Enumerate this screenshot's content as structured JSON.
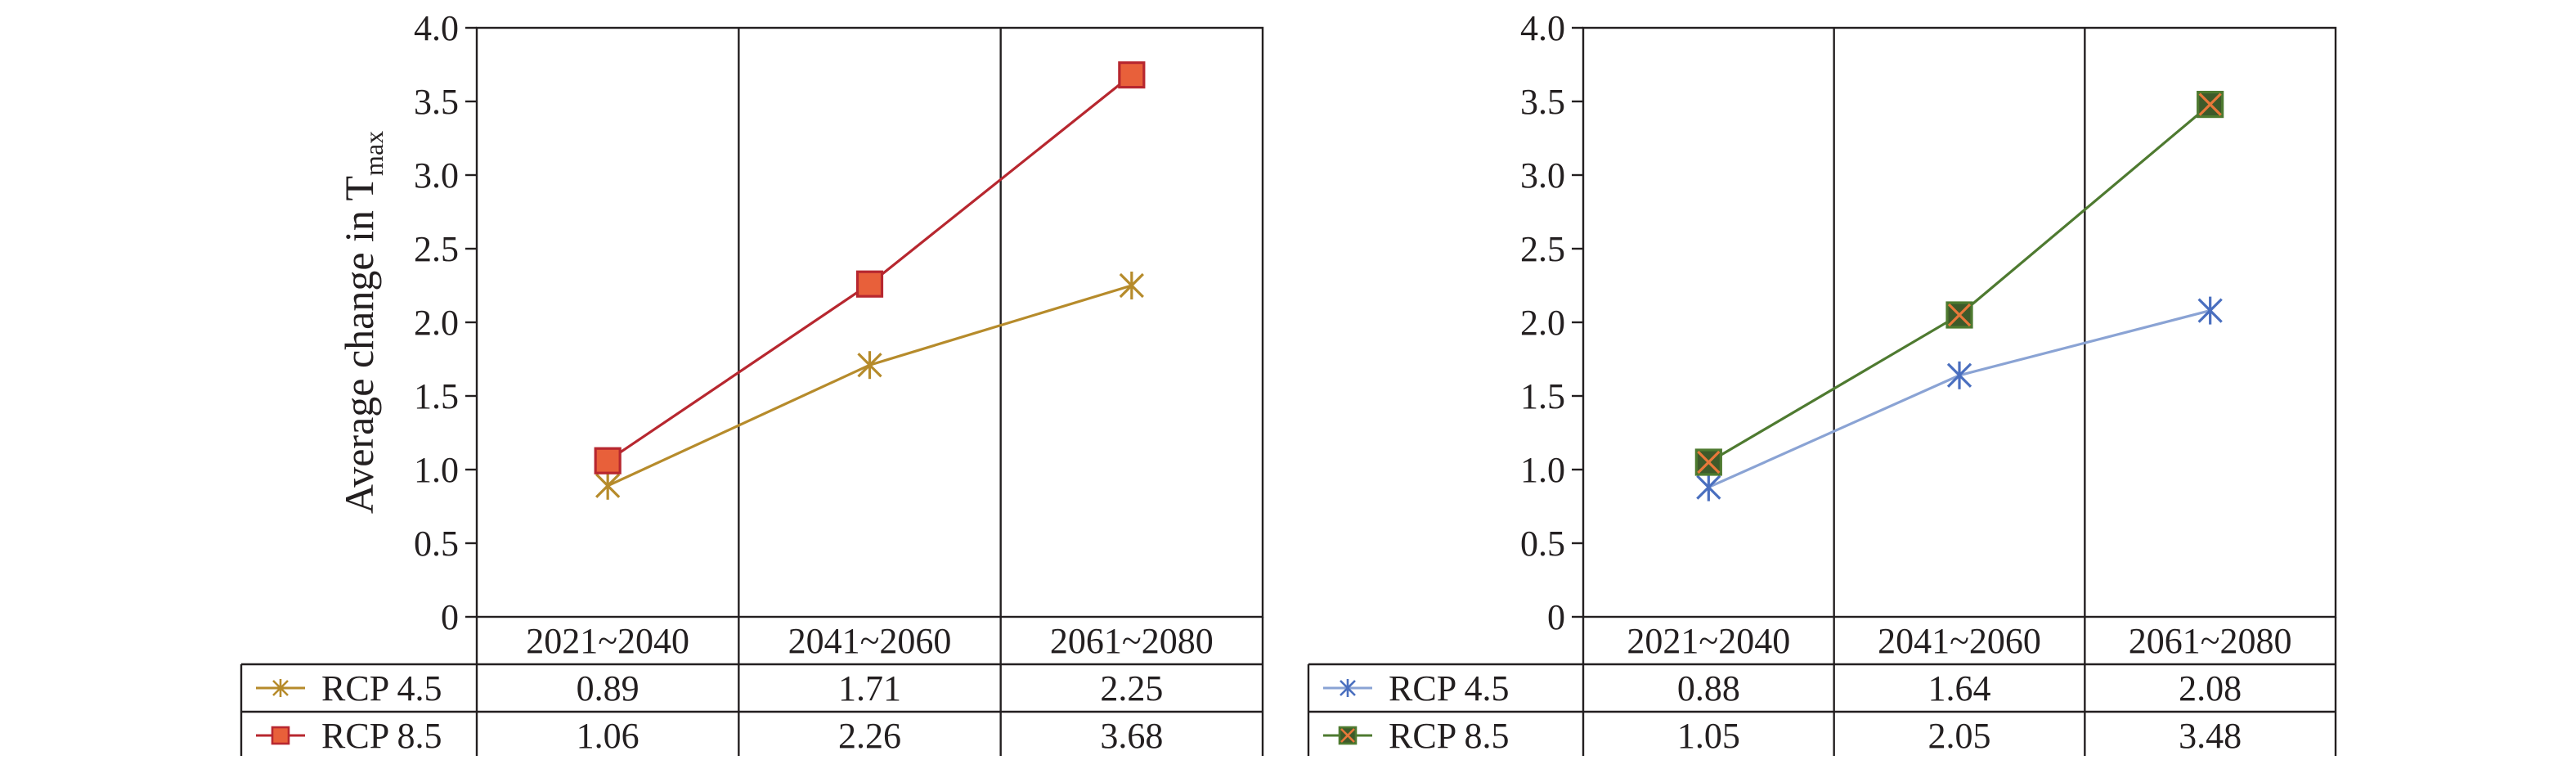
{
  "chart_data": [
    {
      "type": "line",
      "categories": [
        "2021~2040",
        "2041~2060",
        "2061~2080"
      ],
      "ylabel_main": "Average change in T",
      "ylabel_sub": "max",
      "yticks": [
        "0",
        "0.5",
        "1.0",
        "1.5",
        "2.0",
        "2.5",
        "3.0",
        "3.5",
        "4.0"
      ],
      "ylim": [
        0,
        4
      ],
      "grid": "vertical separators",
      "legend": "data table below",
      "series": [
        {
          "name": "RCP 4.5",
          "values": [
            0.89,
            1.71,
            2.25
          ],
          "labels": [
            "0.89",
            "1.71",
            "2.25"
          ],
          "color": "#b68b2b",
          "marker": "asterisk"
        },
        {
          "name": "RCP 8.5",
          "values": [
            1.06,
            2.26,
            3.68
          ],
          "labels": [
            "1.06",
            "2.26",
            "3.68"
          ],
          "color": "#b7272f",
          "marker": "square",
          "fill": "#e8603a"
        }
      ]
    },
    {
      "type": "line",
      "categories": [
        "2021~2040",
        "2041~2060",
        "2061~2080"
      ],
      "ylabel_main": "",
      "ylabel_sub": "",
      "yticks": [
        "0",
        "0.5",
        "1.0",
        "1.5",
        "2.0",
        "2.5",
        "3.0",
        "3.5",
        "4.0"
      ],
      "ylim": [
        0,
        4
      ],
      "grid": "vertical separators",
      "legend": "data table below",
      "series": [
        {
          "name": "RCP 4.5",
          "values": [
            0.88,
            1.64,
            2.08
          ],
          "labels": [
            "0.88",
            "1.64",
            "2.08"
          ],
          "color": "#4a6fbf",
          "marker": "asterisk",
          "line": "#8aa3d4"
        },
        {
          "name": "RCP 8.5",
          "values": [
            1.05,
            2.05,
            3.48
          ],
          "labels": [
            "1.05",
            "2.05",
            "3.48"
          ],
          "color": "#4e7a30",
          "marker": "square-x",
          "fill": "#3e5a2a",
          "cross": "#e8783a"
        }
      ]
    }
  ]
}
